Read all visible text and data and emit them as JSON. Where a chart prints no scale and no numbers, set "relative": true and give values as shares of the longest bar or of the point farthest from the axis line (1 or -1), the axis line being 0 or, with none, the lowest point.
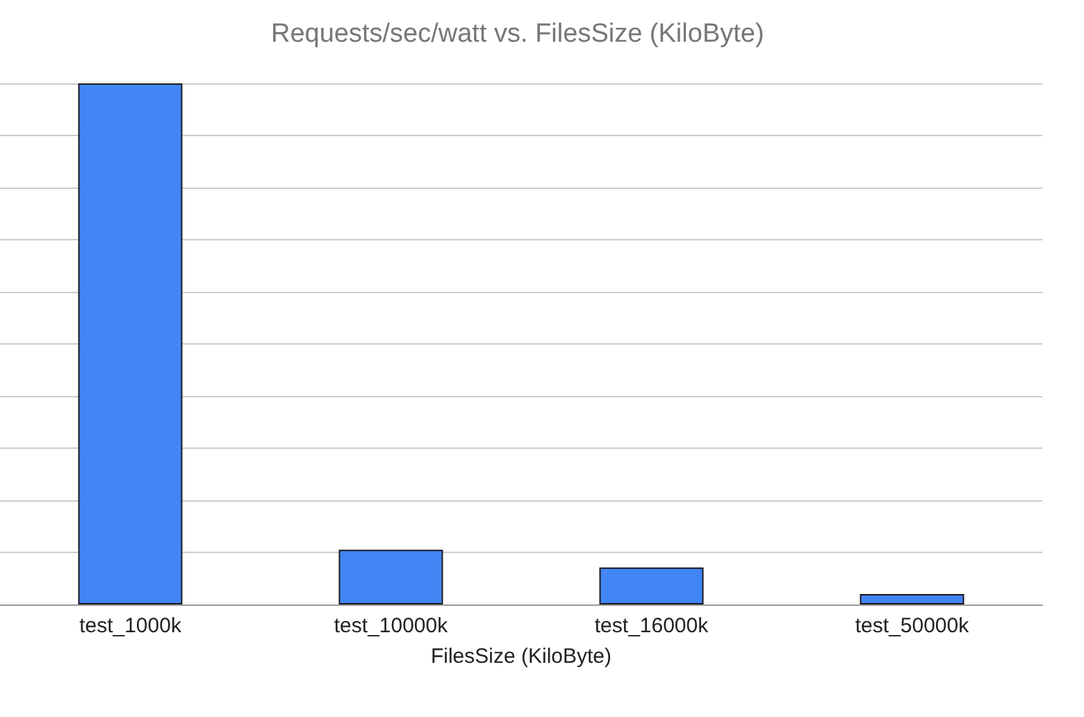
{
  "chart_data": {
    "type": "bar",
    "title": "Requests/sec/watt vs. FilesSize (KiloByte)",
    "xlabel": "FilesSize (KiloByte)",
    "categories": [
      "test_1000k",
      "test_10000k",
      "test_16000k",
      "test_50000k"
    ],
    "series": [
      {
        "color": "#4285f4",
        "values": [
          1,
          0.105,
          0.071,
          0.02
        ]
      }
    ],
    "relative": true,
    "grid": "y"
  }
}
